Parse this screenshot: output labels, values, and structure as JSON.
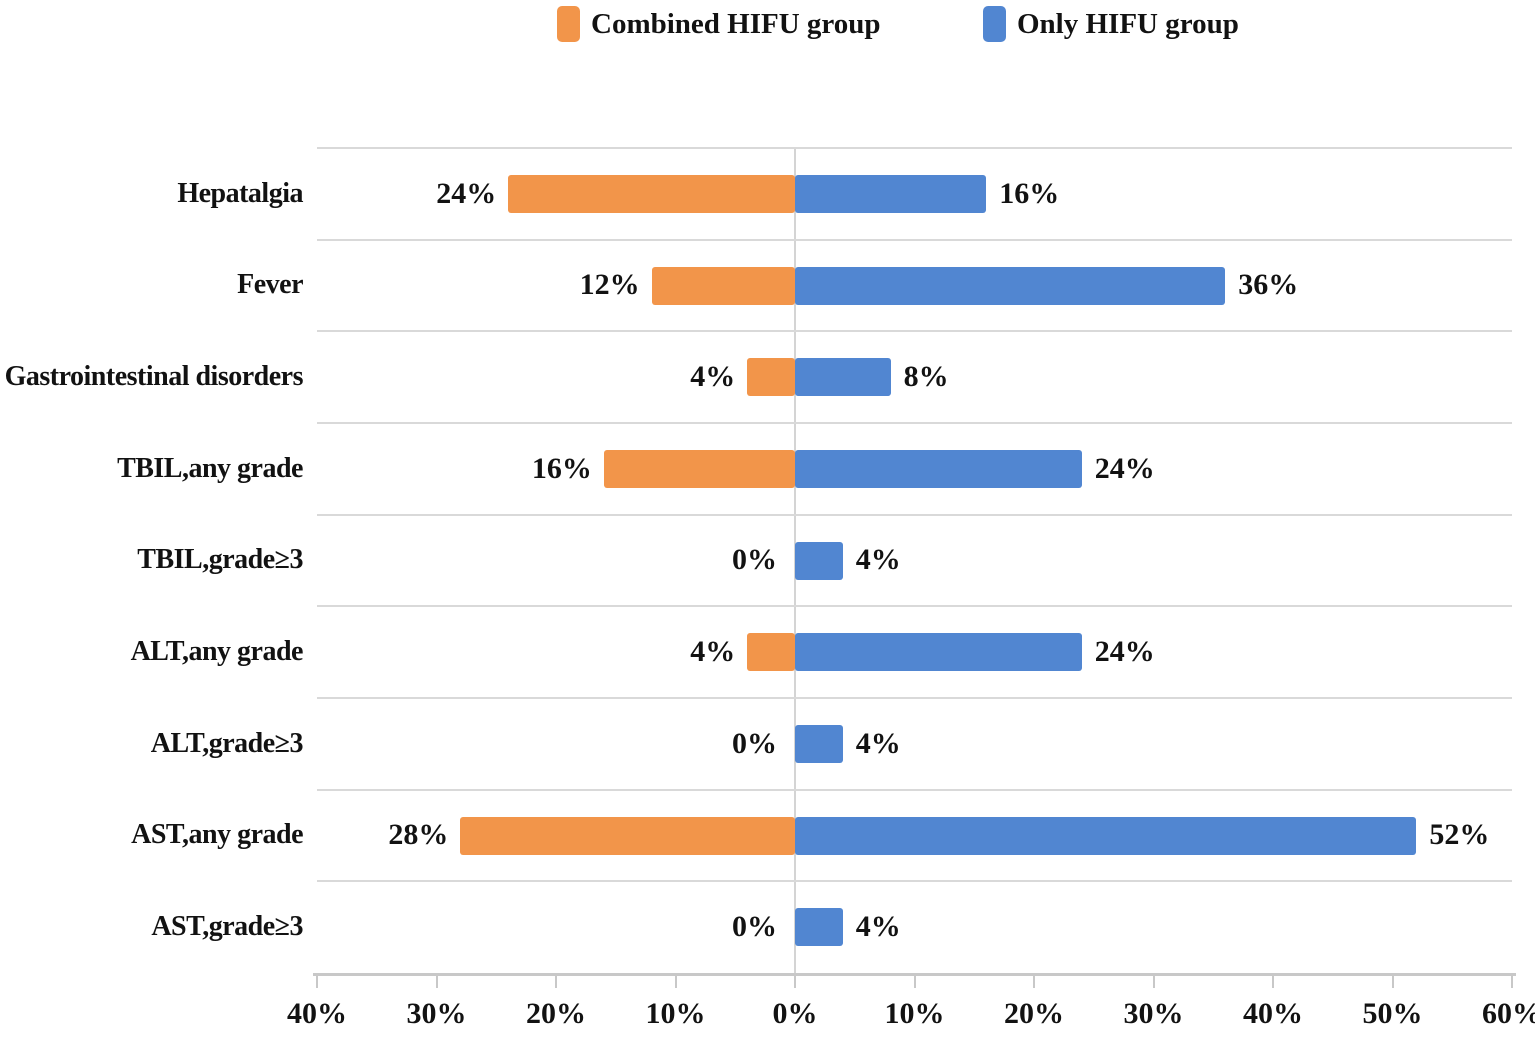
{
  "chart_data": {
    "type": "bar",
    "subtype": "diverging-horizontal",
    "categories": [
      "Hepatalgia",
      "Fever",
      "Gastrointestinal disorders",
      "TBIL,any grade",
      "TBIL,grade≥3",
      "ALT,any grade",
      "ALT,grade≥3",
      "AST,any grade",
      "AST,grade≥3"
    ],
    "series": [
      {
        "name": "Combined HIFU group",
        "side": "left",
        "color": "#F2954A",
        "values": [
          24,
          12,
          4,
          16,
          0,
          4,
          0,
          28,
          0
        ]
      },
      {
        "name": "Only HIFU group",
        "side": "right",
        "color": "#5186D1",
        "values": [
          16,
          36,
          8,
          24,
          4,
          24,
          4,
          52,
          4
        ]
      }
    ],
    "value_label_format": "{v}%",
    "x_axis": {
      "range": [
        -40,
        60
      ],
      "tick_interval": 10,
      "tick_labels": [
        "40%",
        "30%",
        "20%",
        "10%",
        "0%",
        "10%",
        "20%",
        "30%",
        "40%",
        "50%",
        "60%"
      ]
    },
    "legend_position": "top",
    "grid": {
      "row_separators": true,
      "zero_line": true
    }
  }
}
